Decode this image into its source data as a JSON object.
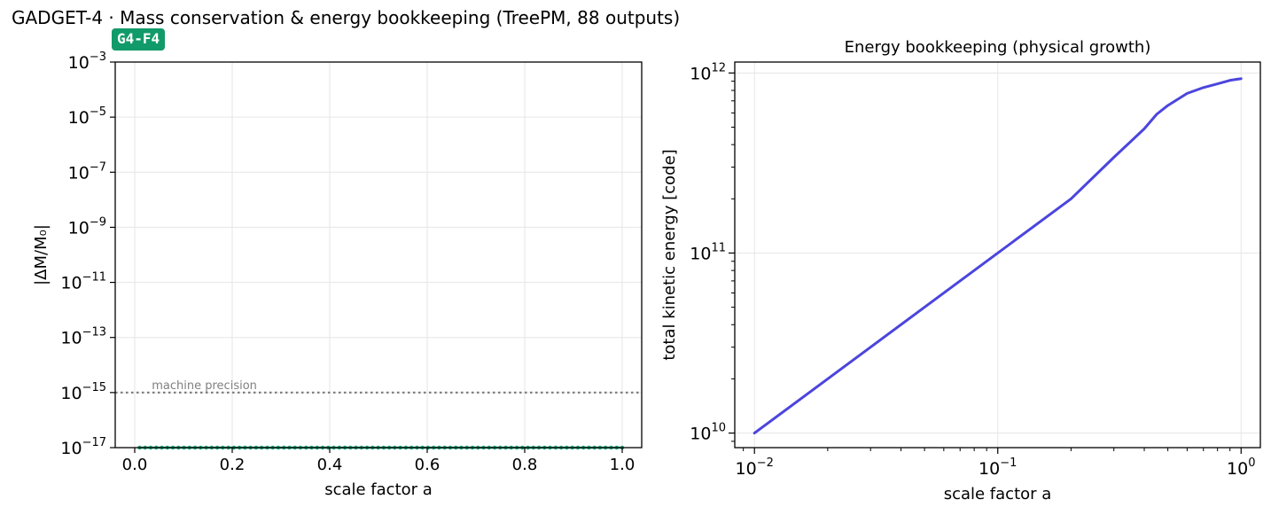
{
  "figure": {
    "suptitle": "GADGET-4 · Mass conservation & energy bookkeeping (TreePM, 88 outputs)",
    "badge": "G4-F4"
  },
  "colors": {
    "mass_series": "#1b9e77",
    "energy_series": "#4b45dd",
    "reference_line": "#808080",
    "grid": "#e6e6e6",
    "badge_bg": "#119a6a"
  },
  "chart_data": [
    {
      "type": "line",
      "title": "",
      "xlabel": "scale factor a",
      "ylabel": "|ΔM/M₀|",
      "xscale": "linear",
      "yscale": "log",
      "xlim": [
        -0.04,
        1.04
      ],
      "ylim": [
        1e-17,
        0.001
      ],
      "xticks": [
        0.0,
        0.2,
        0.4,
        0.6,
        0.8,
        1.0
      ],
      "xtick_labels": [
        "0.0",
        "0.2",
        "0.4",
        "0.6",
        "0.8",
        "1.0"
      ],
      "ytick_exponents": [
        -17,
        -15,
        -13,
        -11,
        -9,
        -7,
        -5,
        -3
      ],
      "grid": true,
      "series": [
        {
          "x_start": 0.01,
          "x_end": 1.0,
          "n_points": 88,
          "y_value": 1e-17,
          "style": "dotted-markers"
        }
      ],
      "reference_line": {
        "y": 1e-15,
        "label": "machine precision"
      }
    },
    {
      "type": "line",
      "title": "Energy bookkeeping (physical growth)",
      "xlabel": "scale factor a",
      "ylabel": "total kinetic energy [code]",
      "xscale": "log",
      "yscale": "log",
      "xlim": [
        0.0083,
        1.2
      ],
      "ylim": [
        8300000000.0,
        1150000000000.0
      ],
      "xticks": [
        0.01,
        0.1,
        1
      ],
      "xtick_exponents": [
        -2,
        -1,
        0
      ],
      "yticks": [
        10000000000.0,
        100000000000.0,
        1000000000000.0
      ],
      "ytick_exponents": [
        10,
        11,
        12
      ],
      "grid": true,
      "series": [
        {
          "x": [
            0.01,
            0.02,
            0.05,
            0.1,
            0.2,
            0.3,
            0.4,
            0.45,
            0.5,
            0.6,
            0.7,
            0.8,
            0.9,
            1.0
          ],
          "y": [
            10000000000.0,
            20000000000.0,
            50000000000.0,
            100000000000.0,
            200000000000.0,
            340000000000.0,
            490000000000.0,
            590000000000.0,
            660000000000.0,
            770000000000.0,
            830000000000.0,
            870000000000.0,
            910000000000.0,
            930000000000.0
          ]
        }
      ]
    }
  ]
}
